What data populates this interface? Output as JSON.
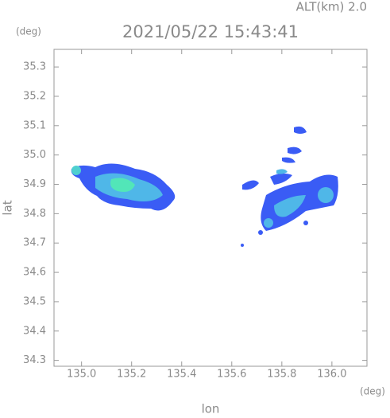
{
  "chart_data": {
    "type": "map",
    "title": "2021/05/22 15:43:41",
    "subtitle": "ALT(km) 2.0",
    "y_unit": "(deg)",
    "x_unit": "(deg)",
    "xlabel": "lon",
    "ylabel": "lat",
    "xlim": [
      134.89,
      136.14
    ],
    "ylim": [
      34.28,
      35.36
    ],
    "xticks": [
      {
        "value": 135,
        "label": "135.0"
      },
      135.2,
      135.4,
      135.6,
      135.8,
      {
        "value": 136,
        "label": "136.0"
      }
    ],
    "yticks": [
      34.3,
      34.4,
      34.5,
      34.6,
      34.7,
      34.8,
      34.9,
      {
        "value": 35,
        "label": "35.0"
      },
      35.1,
      35.2,
      35.3
    ],
    "grid": false
  }
}
